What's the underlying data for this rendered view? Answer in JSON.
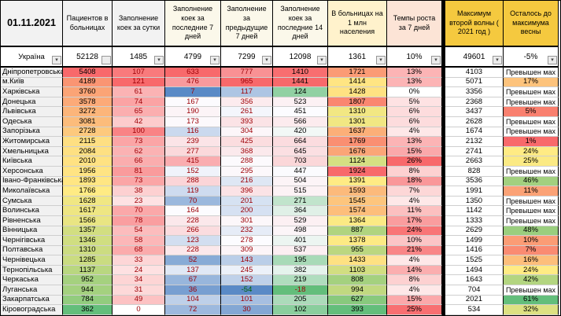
{
  "title_date": "01.11.2021",
  "columns": [
    "Пациентов в больницах",
    "Заполнение коек за сутки",
    "Заполнение коек за последние 7 дней",
    "Заполнение за предыдущие 7 дней",
    "Заполнение коек за последние 14 дней",
    "В больницах на 1 млн населения",
    "Темпы роста за 7 дней",
    "Максимум второй волны ( 2021 год )",
    "Осталось до максимума весны"
  ],
  "ukraine": {
    "name": "Україна",
    "values": [
      "52128",
      "1485",
      "4799",
      "7299",
      "12098",
      "1361",
      "10%",
      "49601",
      "-5%"
    ]
  },
  "overflow_label": "Превышен мах",
  "regions": [
    {
      "name": "Дніпропетровська",
      "values": [
        5408,
        107,
        633,
        777,
        1410,
        1721,
        "13%",
        4103,
        "Превышен мах"
      ]
    },
    {
      "name": "м.Київ",
      "values": [
        4189,
        121,
        476,
        965,
        1441,
        1414,
        "13%",
        5071,
        "17%"
      ]
    },
    {
      "name": "Харківська",
      "values": [
        3760,
        61,
        7,
        117,
        124,
        1428,
        "0%",
        3356,
        "Превышен мах"
      ]
    },
    {
      "name": "Донецька",
      "values": [
        3578,
        74,
        167,
        356,
        523,
        1807,
        "5%",
        2368,
        "Превышен мах"
      ]
    },
    {
      "name": "Львівська",
      "values": [
        3272,
        65,
        190,
        261,
        451,
        1310,
        "6%",
        3437,
        "5%"
      ]
    },
    {
      "name": "Одеська",
      "values": [
        3081,
        42,
        173,
        393,
        566,
        1301,
        "6%",
        2628,
        "Превышен мах"
      ]
    },
    {
      "name": "Запорізька",
      "values": [
        2728,
        100,
        116,
        304,
        420,
        1637,
        "4%",
        1674,
        "Превышен мах"
      ]
    },
    {
      "name": "Житомирська",
      "values": [
        2115,
        73,
        239,
        425,
        664,
        1769,
        "13%",
        2132,
        "1%"
      ]
    },
    {
      "name": "Хмельницька",
      "values": [
        2084,
        62,
        277,
        368,
        645,
        1676,
        "15%",
        2741,
        "24%"
      ]
    },
    {
      "name": "Київська",
      "values": [
        2010,
        66,
        415,
        288,
        703,
        1124,
        "26%",
        2663,
        "25%"
      ]
    },
    {
      "name": "Херсонська",
      "values": [
        1956,
        81,
        152,
        295,
        447,
        1924,
        "8%",
        828,
        "Превышен мах"
      ]
    },
    {
      "name": "Івано-Франківська",
      "values": [
        1893,
        73,
        288,
        216,
        504,
        1391,
        "18%",
        3536,
        "46%"
      ]
    },
    {
      "name": "Миколаївська",
      "values": [
        1766,
        38,
        119,
        396,
        515,
        1593,
        "7%",
        1991,
        "11%"
      ]
    },
    {
      "name": "Сумська",
      "values": [
        1628,
        23,
        70,
        201,
        271,
        1545,
        "4%",
        1350,
        "Превышен мах"
      ]
    },
    {
      "name": "Волинська",
      "values": [
        1617,
        70,
        164,
        200,
        364,
        1574,
        "11%",
        1142,
        "Превышен мах"
      ]
    },
    {
      "name": "Рівненська",
      "values": [
        1566,
        78,
        228,
        301,
        529,
        1364,
        "17%",
        1333,
        "Превышен мах"
      ]
    },
    {
      "name": "Вінницька",
      "values": [
        1357,
        54,
        266,
        232,
        498,
        887,
        "24%",
        2629,
        "48%"
      ]
    },
    {
      "name": "Чернігівська",
      "values": [
        1346,
        58,
        123,
        278,
        401,
        1378,
        "10%",
        1499,
        "10%"
      ]
    },
    {
      "name": "Полтавська",
      "values": [
        1310,
        68,
        228,
        309,
        537,
        955,
        "21%",
        1416,
        "7%"
      ]
    },
    {
      "name": "Чернівецька",
      "values": [
        1285,
        33,
        52,
        143,
        195,
        1433,
        "4%",
        1525,
        "16%"
      ]
    },
    {
      "name": "Тернопільська",
      "values": [
        1137,
        24,
        137,
        245,
        382,
        1103,
        "14%",
        1494,
        "24%"
      ]
    },
    {
      "name": "Черкаська",
      "values": [
        952,
        34,
        67,
        152,
        219,
        808,
        "8%",
        1643,
        "42%"
      ]
    },
    {
      "name": "Луганська",
      "values": [
        944,
        31,
        36,
        -54,
        -18,
        994,
        "4%",
        704,
        "Превышен мах"
      ]
    },
    {
      "name": "Закарпатська",
      "values": [
        784,
        49,
        104,
        101,
        205,
        627,
        "15%",
        2021,
        "61%"
      ]
    },
    {
      "name": "Кіровоградська",
      "values": [
        362,
        0,
        72,
        30,
        102,
        393,
        "25%",
        534,
        "32%"
      ]
    }
  ],
  "colors": {
    "scale_red": "#F8696B",
    "scale_yellow": "#FFEB84",
    "scale_green": "#63BE7B",
    "scale_blue": "#5A8AC6",
    "scale_white": "#FCFCFF",
    "plain_white": "#FFFFFF",
    "text_dark_red": "#9C0006",
    "text_green": "#006100",
    "header_gold": "#F5C93F",
    "header_peach": "#FCE4D6",
    "header_light_yellow": "#FFF2CC",
    "header_gray": "#F2F2F2",
    "header_cream": "#FBF8EA",
    "separator_black": "#000000"
  }
}
